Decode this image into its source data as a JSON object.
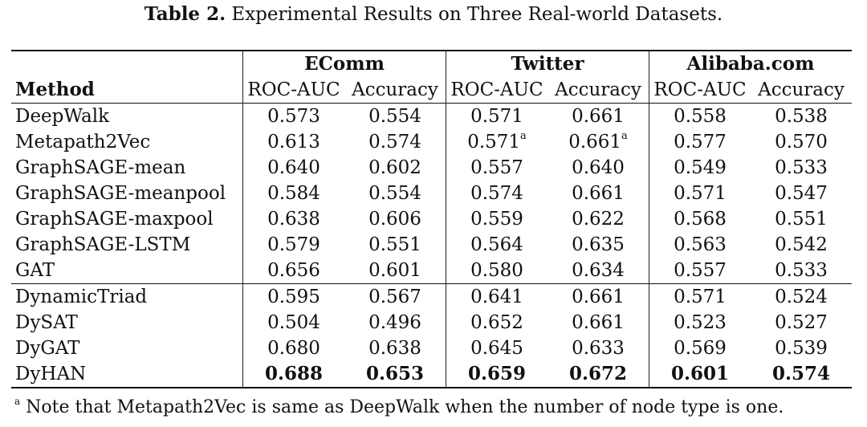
{
  "caption": {
    "label": "Table 2.",
    "text": "Experimental Results on Three Real-world Datasets."
  },
  "header": {
    "method": "Method",
    "datasets": [
      "EComm",
      "Twitter",
      "Alibaba.com"
    ],
    "metrics": [
      "ROC-AUC",
      "Accuracy",
      "ROC-AUC",
      "Accuracy",
      "ROC-AUC",
      "Accuracy"
    ]
  },
  "rows": [
    {
      "method": "DeepWalk",
      "values": [
        "0.573",
        "0.554",
        "0.571",
        "0.661",
        "0.558",
        "0.538"
      ]
    },
    {
      "method": "Metapath2Vec",
      "values": [
        "0.613",
        "0.574",
        "0.571",
        "0.661",
        "0.577",
        "0.570"
      ],
      "superscripts": [
        "",
        "",
        "a",
        "a",
        "",
        ""
      ]
    },
    {
      "method": "GraphSAGE-mean",
      "values": [
        "0.640",
        "0.602",
        "0.557",
        "0.640",
        "0.549",
        "0.533"
      ]
    },
    {
      "method": "GraphSAGE-meanpool",
      "values": [
        "0.584",
        "0.554",
        "0.574",
        "0.661",
        "0.571",
        "0.547"
      ]
    },
    {
      "method": "GraphSAGE-maxpool",
      "values": [
        "0.638",
        "0.606",
        "0.559",
        "0.622",
        "0.568",
        "0.551"
      ]
    },
    {
      "method": "GraphSAGE-LSTM",
      "values": [
        "0.579",
        "0.551",
        "0.564",
        "0.635",
        "0.563",
        "0.542"
      ]
    },
    {
      "method": "GAT",
      "values": [
        "0.656",
        "0.601",
        "0.580",
        "0.634",
        "0.557",
        "0.533"
      ]
    },
    {
      "method": "DynamicTriad",
      "values": [
        "0.595",
        "0.567",
        "0.641",
        "0.661",
        "0.571",
        "0.524"
      ]
    },
    {
      "method": "DySAT",
      "values": [
        "0.504",
        "0.496",
        "0.652",
        "0.661",
        "0.523",
        "0.527"
      ]
    },
    {
      "method": "DyGAT",
      "values": [
        "0.680",
        "0.638",
        "0.645",
        "0.633",
        "0.569",
        "0.539"
      ]
    },
    {
      "method": "DyHAN",
      "values": [
        "0.688",
        "0.653",
        "0.659",
        "0.672",
        "0.601",
        "0.574"
      ],
      "bold": true
    }
  ],
  "footnote": {
    "mark": "a",
    "text": "Note that Metapath2Vec is same as DeepWalk when the number of node type is one."
  }
}
